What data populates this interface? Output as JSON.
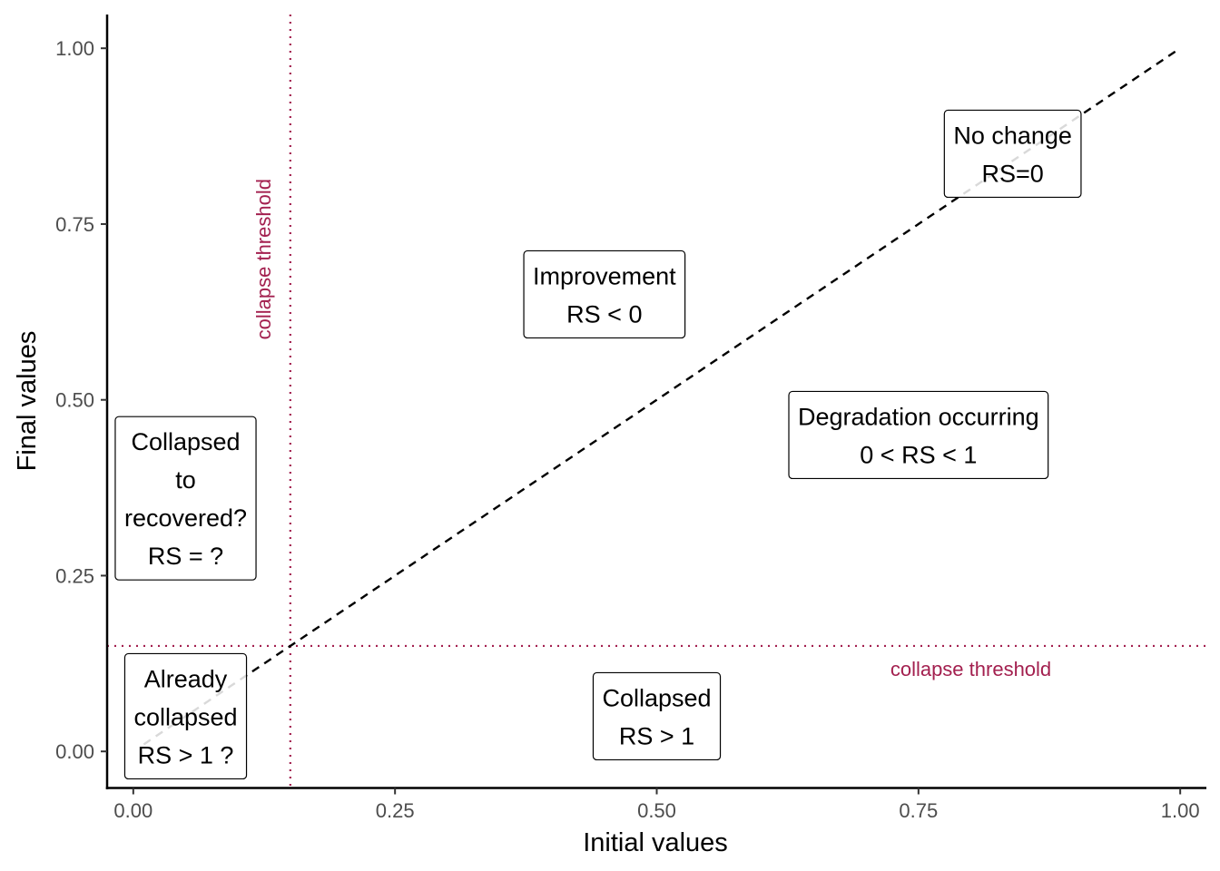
{
  "chart_data": {
    "type": "scatter",
    "title": "",
    "xlabel": "Initial values",
    "ylabel": "Final values",
    "xlim": [
      -0.025,
      1.025
    ],
    "ylim": [
      -0.052,
      1.048
    ],
    "x_ticks": [
      0,
      0.25,
      0.5,
      0.75,
      1
    ],
    "x_tick_labels": [
      "0.00",
      "0.25",
      "0.50",
      "0.75",
      "1.00"
    ],
    "y_ticks": [
      0,
      0.25,
      0.5,
      0.75,
      1
    ],
    "y_tick_labels": [
      "0.00",
      "0.25",
      "0.50",
      "0.75",
      "1.00"
    ],
    "grid": false,
    "reference_line": {
      "label": "No change",
      "x": [
        0.01,
        1.0
      ],
      "y": [
        0.01,
        1.0
      ],
      "style": "dashed",
      "color": "#000000"
    },
    "threshold_color": "#a3204f",
    "thresholds": [
      {
        "axis": "x",
        "value": 0.15,
        "label": "collapse threshold",
        "label_position": 0.7
      },
      {
        "axis": "y",
        "value": 0.15,
        "label": "collapse threshold",
        "label_position": 0.8
      }
    ],
    "annotations": [
      {
        "x": 0.84,
        "y": 0.85,
        "lines": [
          "No change",
          "RS=0"
        ]
      },
      {
        "x": 0.45,
        "y": 0.65,
        "lines": [
          "Improvement",
          "RS < 0"
        ]
      },
      {
        "x": 0.75,
        "y": 0.45,
        "lines": [
          "Degradation occurring",
          "0 < RS < 1"
        ]
      },
      {
        "x": 0.05,
        "y": 0.36,
        "lines": [
          "Collapsed",
          "to",
          "recovered?",
          "RS = ?"
        ]
      },
      {
        "x": 0.05,
        "y": 0.05,
        "lines": [
          "Already",
          "collapsed",
          "RS > 1 ?"
        ]
      },
      {
        "x": 0.5,
        "y": 0.05,
        "lines": [
          "Collapsed",
          "RS > 1"
        ]
      }
    ]
  }
}
